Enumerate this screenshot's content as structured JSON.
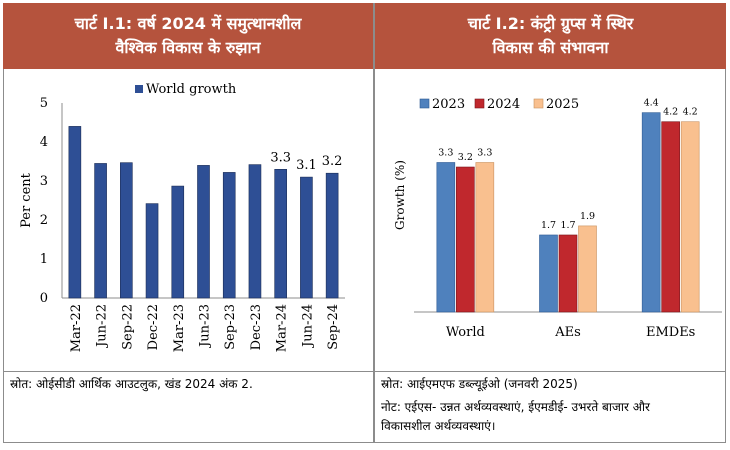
{
  "left": {
    "title_line1": "चार्ट I.1: वर्ष 2024 में समुत्थानशील",
    "title_line2": "वैश्विक विकास के रुझान",
    "source": "स्रोत: ओईसीडी आर्थिक आउटलुक, खंड 2024 अंक 2."
  },
  "right": {
    "title_line1": "चार्ट I.2: कंट्री ग्रुप्स में स्थिर",
    "title_line2": "विकास की संभावना",
    "source": "स्रोत: आईएमएफ डब्ल्यूईओ (जनवरी 2025)",
    "note_line1": "नोट: एईएस- उन्नत अर्थव्यवस्थाएं, ईएमडीई- उभरते बाजार और",
    "note_line2": "विकासशील अर्थव्यवस्थाएं।"
  },
  "colors": {
    "header_bg": "#b5533d",
    "bar_world": "#2e4f95",
    "series_2023": "#4f81bd",
    "series_2024": "#c0282d",
    "series_2025": "#f9c08f"
  },
  "chart_data": [
    {
      "type": "bar",
      "ylabel": "Per cent",
      "ylim": [
        0,
        5
      ],
      "yticks": [
        "0",
        "1",
        "2",
        "3",
        "4",
        "5"
      ],
      "categories": [
        "Mar-22",
        "Jun-22",
        "Sep-22",
        "Dec-22",
        "Mar-23",
        "Jun-23",
        "Sep-23",
        "Dec-23",
        "Mar-24",
        "Jun-24",
        "Sep-24"
      ],
      "series": [
        {
          "name": "World growth",
          "values": [
            4.4,
            3.45,
            3.47,
            2.42,
            2.87,
            3.4,
            3.22,
            3.42,
            3.3,
            3.1,
            3.2
          ]
        }
      ],
      "data_labels": [
        {
          "index": 8,
          "text": "3.3"
        },
        {
          "index": 9,
          "text": "3.1"
        },
        {
          "index": 10,
          "text": "3.2"
        }
      ],
      "grid": false,
      "legend": "top"
    },
    {
      "type": "bar",
      "ylabel": "Growth (%)",
      "categories": [
        "World",
        "AEs",
        "EMDEs"
      ],
      "series": [
        {
          "name": "2023",
          "values": [
            3.3,
            1.7,
            4.4
          ],
          "labels": [
            "3.3",
            "1.7",
            "4.4"
          ]
        },
        {
          "name": "2024",
          "values": [
            3.2,
            1.7,
            4.2
          ],
          "labels": [
            "3.2",
            "1.7",
            "4.2"
          ]
        },
        {
          "name": "2025",
          "values": [
            3.3,
            1.9,
            4.2
          ],
          "labels": [
            "3.3",
            "1.9",
            "4.2"
          ]
        }
      ],
      "grid": false,
      "legend": "top-left"
    }
  ]
}
